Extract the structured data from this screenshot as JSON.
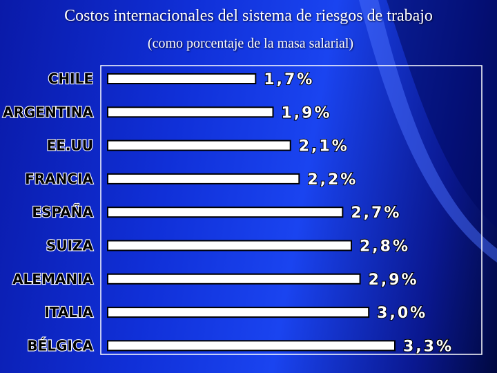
{
  "slide": {
    "title": "Costos internacionales del sistema de riesgos de trabajo",
    "subtitle": "(como porcentaje de la masa salarial)"
  },
  "colors": {
    "bar_fill": "#ffffff",
    "bar_outline": "#000000",
    "frame": "#ffffff",
    "title_text": "#ffffff"
  },
  "chart_data": {
    "type": "bar",
    "orientation": "horizontal",
    "title": "Costos internacionales del sistema de riesgos de trabajo",
    "subtitle": "(como porcentaje de la masa salarial)",
    "categories": [
      "CHILE",
      "ARGENTINA",
      "EE.UU",
      "FRANCIA",
      "ESPAÑA",
      "SUIZA",
      "ALEMANIA",
      "ITALIA",
      "BÉLGICA"
    ],
    "values": [
      1.7,
      1.9,
      2.1,
      2.2,
      2.7,
      2.8,
      2.9,
      3.0,
      3.3
    ],
    "value_labels": [
      "1,7%",
      "1,9%",
      "2,1%",
      "2,2%",
      "2,7%",
      "2,8%",
      "2,9%",
      "3,0%",
      "3,3%"
    ],
    "xlim": [
      0,
      3.3
    ],
    "grid": false,
    "legend": "none"
  }
}
